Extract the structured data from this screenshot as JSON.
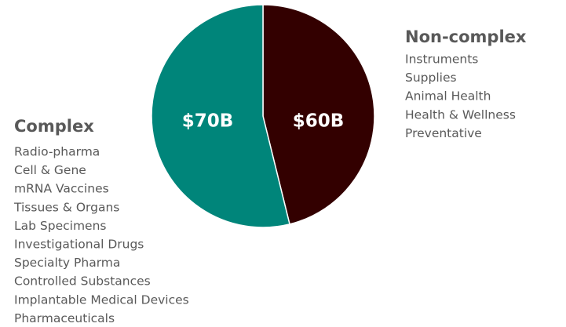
{
  "chart_data": {
    "type": "pie",
    "categories": [
      "Non-complex",
      "Complex"
    ],
    "values": [
      60,
      70
    ],
    "value_labels": [
      "$60B",
      "$70B"
    ],
    "colors": [
      "#330000",
      "#00857a"
    ],
    "category_items": [
      [
        "Instruments",
        "Supplies",
        "Animal Health",
        "Health & Wellness",
        "Preventative"
      ],
      [
        "Radio-pharma",
        "Cell & Gene",
        "mRNA Vaccines",
        "Tissues & Organs",
        "Lab Specimens",
        "Investigational Drugs",
        "Specialty Pharma",
        "Controlled Substances",
        "Implantable Medical Devices",
        "Pharmaceuticals"
      ]
    ]
  }
}
